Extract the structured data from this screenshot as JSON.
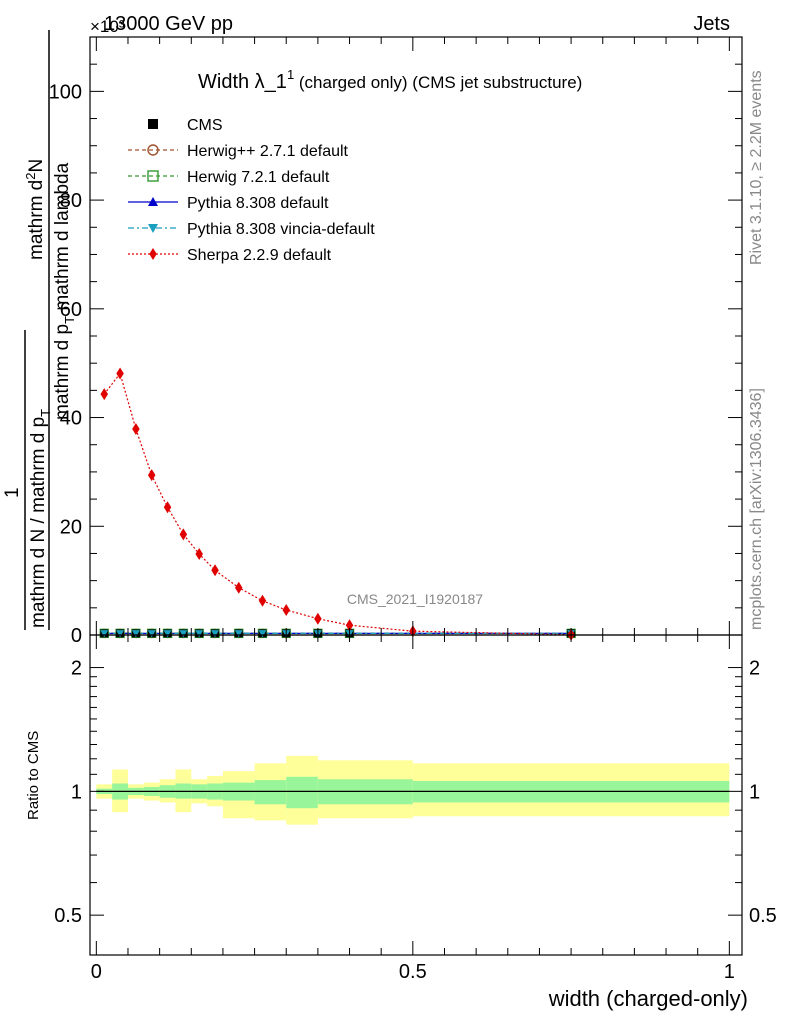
{
  "header": {
    "left": "13000 GeV pp",
    "right": "Jets",
    "exponent": "×10³"
  },
  "side_labels": {
    "rivet": "Rivet 3.1.10, ≥ 2.2M events",
    "mcplots": "mcplots.cern.ch [arXiv:1306.3436]"
  },
  "watermark": "CMS_2021_I1920187",
  "chart_data": [
    {
      "type": "line",
      "title": "Width λ_1¹ (charged only) (CMS jet substructure)",
      "title_main": "Width λ_1",
      "title_sup": "1",
      "title_rest": " (charged only) (CMS jet substructure)",
      "ylabel": "1/(mathrm d N / mathrm d p_T) mathrm d²N / (mathrm d p_T mathrm d lambda)",
      "ylabel_num": "mathrm d²N",
      "ylabel_num_a": "mathrm d",
      "ylabel_num_sup": "2",
      "ylabel_num_b": "N",
      "ylabel_den": "mathrm d p_T mathrm d lambda",
      "ylabel_den_a": "mathrm d p",
      "ylabel_den_sub": "T",
      "ylabel_den_b": " mathrm d lambda",
      "ylabel_left_num": "1",
      "ylabel_left_den": "mathrm d N / mathrm d p_T",
      "ylabel_left_den_a": "mathrm d N / mathrm d p",
      "ylabel_left_den_sub": "T",
      "xlim": [
        -0.01,
        1.02
      ],
      "ylim": [
        0,
        110
      ],
      "y_multiplier": 1000,
      "yticks": [
        0,
        20,
        40,
        60,
        80,
        100
      ],
      "yticklabels": [
        "0",
        "20",
        "40",
        "60",
        "80",
        "100"
      ],
      "legend_position": "top-left",
      "x_bins": [
        0.0125,
        0.0375,
        0.0625,
        0.0875,
        0.1125,
        0.1375,
        0.1625,
        0.1875,
        0.225,
        0.2625,
        0.3,
        0.35,
        0.4,
        0.45,
        0.5,
        0.75
      ],
      "series": [
        {
          "name": "CMS",
          "marker": "square",
          "color": "#000000",
          "x": [
            0.0125,
            0.0375,
            0.0625,
            0.0875,
            0.1125,
            0.1375,
            0.1625,
            0.1875,
            0.225,
            0.2625,
            0.3,
            0.35,
            0.4,
            0.75
          ],
          "y": [
            0.3,
            0.3,
            0.3,
            0.3,
            0.3,
            0.3,
            0.3,
            0.3,
            0.3,
            0.3,
            0.3,
            0.3,
            0.3,
            0.3
          ]
        },
        {
          "name": "Herwig++ 2.7.1 default",
          "marker": "circle-open",
          "color": "#a0522d",
          "line": "dashed",
          "x": [
            0.0125,
            0.0375,
            0.0625,
            0.0875,
            0.1125,
            0.1375,
            0.1625,
            0.1875,
            0.225,
            0.2625,
            0.3,
            0.35,
            0.4,
            0.75
          ],
          "y": [
            0.3,
            0.3,
            0.3,
            0.3,
            0.3,
            0.3,
            0.3,
            0.3,
            0.3,
            0.3,
            0.3,
            0.3,
            0.3,
            0.3
          ]
        },
        {
          "name": "Herwig 7.2.1 default",
          "marker": "square-open",
          "color": "#339933",
          "line": "dashed",
          "x": [
            0.0125,
            0.0375,
            0.0625,
            0.0875,
            0.1125,
            0.1375,
            0.1625,
            0.1875,
            0.225,
            0.2625,
            0.3,
            0.35,
            0.4,
            0.75
          ],
          "y": [
            0.3,
            0.3,
            0.3,
            0.3,
            0.3,
            0.3,
            0.3,
            0.3,
            0.3,
            0.3,
            0.3,
            0.3,
            0.3,
            0.3
          ]
        },
        {
          "name": "Pythia 8.308 default",
          "marker": "triangle-up",
          "color": "#0000cc",
          "line": "solid",
          "x": [
            0.0125,
            0.0375,
            0.0625,
            0.0875,
            0.1125,
            0.1375,
            0.1625,
            0.1875,
            0.225,
            0.2625,
            0.3,
            0.35,
            0.4,
            0.75
          ],
          "y": [
            0.3,
            0.3,
            0.3,
            0.3,
            0.3,
            0.3,
            0.3,
            0.3,
            0.3,
            0.3,
            0.3,
            0.3,
            0.3,
            0.3
          ]
        },
        {
          "name": "Pythia 8.308 vincia-default",
          "marker": "triangle-down",
          "color": "#1a9fbf",
          "line": "dashdot",
          "x": [
            0.0125,
            0.0375,
            0.0625,
            0.0875,
            0.1125,
            0.1375,
            0.1625,
            0.1875,
            0.225,
            0.2625,
            0.3,
            0.35,
            0.4,
            0.75
          ],
          "y": [
            0.3,
            0.3,
            0.3,
            0.3,
            0.3,
            0.3,
            0.3,
            0.3,
            0.3,
            0.3,
            0.3,
            0.3,
            0.3,
            0.3
          ]
        },
        {
          "name": "Sherpa 2.2.9 default",
          "marker": "diamond",
          "color": "#e00000",
          "line": "dotted",
          "x": [
            0.0125,
            0.0375,
            0.0625,
            0.0875,
            0.1125,
            0.1375,
            0.1625,
            0.1875,
            0.225,
            0.2625,
            0.3,
            0.35,
            0.4,
            0.5,
            0.75
          ],
          "y": [
            44.3,
            48.1,
            37.9,
            29.4,
            23.5,
            18.5,
            14.9,
            11.9,
            8.7,
            6.3,
            4.6,
            3.0,
            1.8,
            0.7,
            0.05
          ]
        }
      ]
    },
    {
      "type": "area",
      "ylabel": "Ratio to CMS",
      "xlabel": "width (charged-only)",
      "xlim": [
        -0.01,
        1.02
      ],
      "ylim": [
        0.4,
        2.4
      ],
      "scale": "log",
      "yticks": [
        0.5,
        1,
        2
      ],
      "yticklabels": [
        "0.5",
        "1",
        "2"
      ],
      "xticks": [
        0,
        0.5,
        1
      ],
      "xticklabels": [
        "0",
        "0.5",
        "1"
      ],
      "reference_line": 1,
      "bins": [
        {
          "lo": 0.0,
          "hi": 0.025,
          "stat_lo": 0.985,
          "stat_hi": 1.015,
          "tot_lo": 0.96,
          "tot_hi": 1.04
        },
        {
          "lo": 0.025,
          "hi": 0.05,
          "stat_lo": 0.955,
          "stat_hi": 1.045,
          "tot_lo": 0.89,
          "tot_hi": 1.13
        },
        {
          "lo": 0.05,
          "hi": 0.075,
          "stat_lo": 0.98,
          "stat_hi": 1.02,
          "tot_lo": 0.96,
          "tot_hi": 1.04
        },
        {
          "lo": 0.075,
          "hi": 0.1,
          "stat_lo": 0.975,
          "stat_hi": 1.025,
          "tot_lo": 0.95,
          "tot_hi": 1.05
        },
        {
          "lo": 0.1,
          "hi": 0.125,
          "stat_lo": 0.965,
          "stat_hi": 1.035,
          "tot_lo": 0.94,
          "tot_hi": 1.07
        },
        {
          "lo": 0.125,
          "hi": 0.15,
          "stat_lo": 0.96,
          "stat_hi": 1.045,
          "tot_lo": 0.89,
          "tot_hi": 1.13
        },
        {
          "lo": 0.15,
          "hi": 0.175,
          "stat_lo": 0.96,
          "stat_hi": 1.04,
          "tot_lo": 0.935,
          "tot_hi": 1.07
        },
        {
          "lo": 0.175,
          "hi": 0.2,
          "stat_lo": 0.955,
          "stat_hi": 1.045,
          "tot_lo": 0.92,
          "tot_hi": 1.09
        },
        {
          "lo": 0.2,
          "hi": 0.25,
          "stat_lo": 0.95,
          "stat_hi": 1.05,
          "tot_lo": 0.86,
          "tot_hi": 1.12
        },
        {
          "lo": 0.25,
          "hi": 0.3,
          "stat_lo": 0.93,
          "stat_hi": 1.065,
          "tot_lo": 0.85,
          "tot_hi": 1.17
        },
        {
          "lo": 0.3,
          "hi": 0.35,
          "stat_lo": 0.91,
          "stat_hi": 1.085,
          "tot_lo": 0.83,
          "tot_hi": 1.22
        },
        {
          "lo": 0.35,
          "hi": 0.5,
          "stat_lo": 0.93,
          "stat_hi": 1.07,
          "tot_lo": 0.86,
          "tot_hi": 1.19
        },
        {
          "lo": 0.5,
          "hi": 1.0,
          "stat_lo": 0.94,
          "stat_hi": 1.06,
          "tot_lo": 0.87,
          "tot_hi": 1.17
        }
      ],
      "colors": {
        "stat": "#99f599",
        "total": "#ffff99"
      }
    }
  ]
}
